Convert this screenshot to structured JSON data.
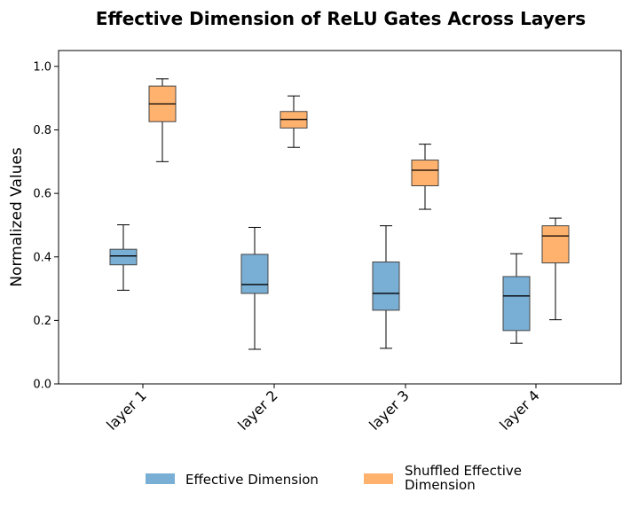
{
  "chart_data": {
    "type": "box",
    "title": "Effective Dimension of ReLU Gates Across Layers",
    "xlabel": "",
    "ylabel": "Normalized Values",
    "ylim": [
      0.0,
      1.05
    ],
    "yticks": [
      0.0,
      0.2,
      0.4,
      0.6,
      0.8,
      1.0
    ],
    "ytick_labels": [
      "0.0",
      "0.2",
      "0.4",
      "0.6",
      "0.8",
      "1.0"
    ],
    "categories": [
      "layer 1",
      "layer 2",
      "layer 3",
      "layer 4"
    ],
    "legend_position": "bottom-center",
    "series": [
      {
        "name": "Effective Dimension",
        "legend_label_lines": [
          "Effective Dimension"
        ],
        "color": "#7aafd5",
        "boxes": [
          {
            "whisker_low": 0.295,
            "q1": 0.375,
            "median": 0.403,
            "q3": 0.424,
            "whisker_high": 0.501
          },
          {
            "whisker_low": 0.109,
            "q1": 0.285,
            "median": 0.313,
            "q3": 0.408,
            "whisker_high": 0.493
          },
          {
            "whisker_low": 0.112,
            "q1": 0.232,
            "median": 0.285,
            "q3": 0.384,
            "whisker_high": 0.498
          },
          {
            "whisker_low": 0.128,
            "q1": 0.168,
            "median": 0.277,
            "q3": 0.338,
            "whisker_high": 0.41
          }
        ]
      },
      {
        "name": "Shuffled Effective Dimension",
        "legend_label_lines": [
          "Shuffled Effective",
          "Dimension"
        ],
        "color": "#ffb26e",
        "boxes": [
          {
            "whisker_low": 0.7,
            "q1": 0.826,
            "median": 0.882,
            "q3": 0.938,
            "whisker_high": 0.961
          },
          {
            "whisker_low": 0.745,
            "q1": 0.806,
            "median": 0.833,
            "q3": 0.858,
            "whisker_high": 0.907
          },
          {
            "whisker_low": 0.55,
            "q1": 0.624,
            "median": 0.673,
            "q3": 0.705,
            "whisker_high": 0.755
          },
          {
            "whisker_low": 0.202,
            "q1": 0.381,
            "median": 0.466,
            "q3": 0.498,
            "whisker_high": 0.522
          }
        ]
      }
    ]
  }
}
